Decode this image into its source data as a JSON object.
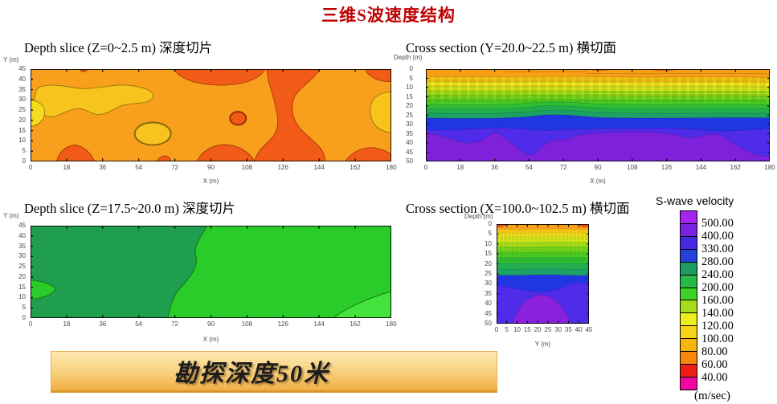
{
  "page": {
    "title": "三维S波速度结构",
    "title_color": "#C00000"
  },
  "banner": {
    "text": "勘探深度50米"
  },
  "legend": {
    "title": "S-wave velocity",
    "unit": "(m/sec)",
    "boundary_labels": [
      "500.00",
      "400.00",
      "330.00",
      "280.00",
      "240.00",
      "200.00",
      "160.00",
      "140.00",
      "120.00",
      "100.00",
      "80.00",
      "60.00",
      "40.00"
    ],
    "cells": [
      {
        "color": "#A524EE"
      },
      {
        "color": "#7A22DF"
      },
      {
        "color": "#4329E2"
      },
      {
        "color": "#2441D6"
      },
      {
        "color": "#1E9A62"
      },
      {
        "color": "#28B948"
      },
      {
        "color": "#3FD228"
      },
      {
        "color": "#A6DC1B"
      },
      {
        "color": "#EDEE20"
      },
      {
        "color": "#F5D316"
      },
      {
        "color": "#F7B30E"
      },
      {
        "color": "#F8870B"
      },
      {
        "color": "#EE1D15"
      },
      {
        "color": "#F2079E"
      }
    ]
  },
  "chart_data": [
    {
      "type": "filled-contour-map",
      "title": "Depth slice (Z=0~2.5 m) 深度切片",
      "xlabel": "X (m)",
      "ylabel": "Y (m)",
      "x_range": [
        0,
        180
      ],
      "y_range": [
        0,
        45
      ],
      "x_ticks": [
        "0",
        "18",
        "36",
        "54",
        "72",
        "90",
        "108",
        "126",
        "144",
        "162",
        "180"
      ],
      "y_ticks": [
        "45",
        "40",
        "35",
        "30",
        "25",
        "20",
        "15",
        "10",
        "5",
        "0"
      ],
      "value_field": "S-wave velocity (m/sec)",
      "regions": [
        {
          "color": "#F8A01B",
          "velocity_m_s": "100-120",
          "where": "background over most of slice"
        },
        {
          "color": "#F6C41C",
          "velocity_m_s": "120-140",
          "where": "patches upper-left wing, left edge, lower-middle blob, right edge"
        },
        {
          "color": "#F25A17",
          "velocity_m_s": "60-80",
          "where": "top-center band, vertical zone x≈115-145, bottom-edge blobs, top-right corner"
        }
      ]
    },
    {
      "type": "filled-contour-section",
      "title": "Cross section (Y=20.0~22.5 m) 横切面",
      "xlabel": "X (m)",
      "ylabel": "Depth (m)",
      "x_range": [
        0,
        180
      ],
      "depth_range": [
        0,
        50
      ],
      "x_ticks": [
        "0",
        "18",
        "36",
        "54",
        "72",
        "90",
        "108",
        "126",
        "144",
        "162",
        "180"
      ],
      "y_ticks": [
        "0",
        "5",
        "10",
        "15",
        "20",
        "25",
        "30",
        "35",
        "40",
        "45",
        "50"
      ],
      "value_field": "S-wave velocity (m/sec)",
      "layers": [
        {
          "depth_m": "0-4",
          "color": "#F89F18",
          "velocity_m_s": "80-100"
        },
        {
          "depth_m": "4-9",
          "color": "#F3D91A",
          "velocity_m_s": "100-140 (dense contours)"
        },
        {
          "depth_m": "9-16",
          "color": "#9ADB1C",
          "velocity_m_s": "140-200 (dense contours)"
        },
        {
          "depth_m": "16-22",
          "color": "#35C136",
          "velocity_m_s": "200-240"
        },
        {
          "depth_m": "22-26",
          "color": "#1FA45C",
          "velocity_m_s": "240-280"
        },
        {
          "depth_m": "26-33",
          "color": "#2136E3",
          "velocity_m_s": "330-400"
        },
        {
          "depth_m": "33-40",
          "color": "#4E2CE9",
          "velocity_m_s": "400-500"
        },
        {
          "depth_m": "35-50",
          "color": "#7D22DA",
          "velocity_m_s": "500+ (undulating top, deepest trough at x≈54)"
        }
      ]
    },
    {
      "type": "filled-contour-map",
      "title": "Depth slice (Z=17.5~20.0 m) 深度切片",
      "xlabel": "X (m)",
      "ylabel": "Y (m)",
      "x_range": [
        0,
        180
      ],
      "y_range": [
        0,
        45
      ],
      "x_ticks": [
        "0",
        "18",
        "36",
        "54",
        "72",
        "90",
        "108",
        "126",
        "144",
        "162",
        "180"
      ],
      "y_ticks": [
        "45",
        "40",
        "35",
        "30",
        "25",
        "20",
        "15",
        "10",
        "5",
        "0"
      ],
      "value_field": "S-wave velocity (m/sec)",
      "regions": [
        {
          "color": "#1F9E4D",
          "velocity_m_s": "240-280",
          "where": "left two-thirds of slice"
        },
        {
          "color": "#29CC29",
          "velocity_m_s": "200-240",
          "where": "right third (wavy boundary x≈68-88) and small blob at left edge y≈10-15"
        },
        {
          "color": "#44E23C",
          "velocity_m_s": "160-200",
          "where": "bottom-right corner wedge"
        }
      ]
    },
    {
      "type": "filled-contour-section",
      "title": "Cross section (X=100.0~102.5 m) 横切面",
      "xlabel": "Y (m)",
      "ylabel": "Depth (m)",
      "x_range": [
        0,
        48
      ],
      "depth_range": [
        0,
        50
      ],
      "x_ticks": [
        "0",
        "5",
        "10",
        "15",
        "20",
        "25",
        "30",
        "35",
        "40",
        "45"
      ],
      "y_ticks": [
        "0",
        "5",
        "10",
        "15",
        "20",
        "25",
        "30",
        "35",
        "40",
        "45",
        "50"
      ],
      "value_field": "S-wave velocity (m/sec)",
      "layers": [
        {
          "depth_m": "0-2.5",
          "color": "#F89F18",
          "velocity_m_s": "80-100 (red 60-80 slivers in top corners)"
        },
        {
          "depth_m": "2.5-9",
          "color": "#F3D91A",
          "velocity_m_s": "100-140 (dense contours)"
        },
        {
          "depth_m": "9-17",
          "color": "#9ADB1C",
          "velocity_m_s": "140-200 (dense contours)"
        },
        {
          "depth_m": "17-22",
          "color": "#2FBE33",
          "velocity_m_s": "200-240"
        },
        {
          "depth_m": "22-25",
          "color": "#1CA166",
          "velocity_m_s": "240-280"
        },
        {
          "depth_m": "25-31",
          "color": "#2136E3",
          "velocity_m_s": "330-400"
        },
        {
          "depth_m": "31-50",
          "color": "#4E2CE9",
          "velocity_m_s": "400-500"
        },
        {
          "depth_m": "35-50",
          "color": "#8A22DC",
          "velocity_m_s": "500+ dome centered at Y≈24"
        }
      ]
    }
  ]
}
